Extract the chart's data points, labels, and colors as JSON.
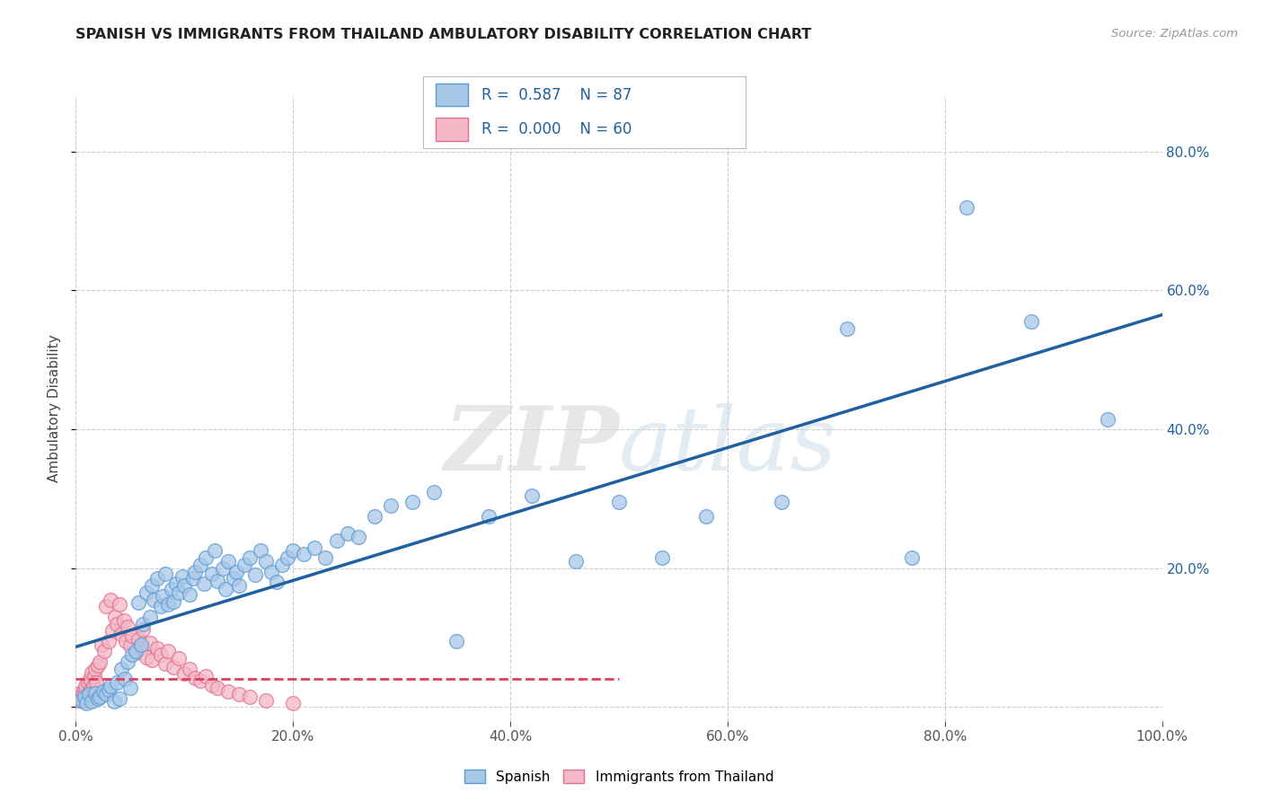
{
  "title": "SPANISH VS IMMIGRANTS FROM THAILAND AMBULATORY DISABILITY CORRELATION CHART",
  "source": "Source: ZipAtlas.com",
  "ylabel": "Ambulatory Disability",
  "xlim": [
    0.0,
    1.0
  ],
  "ylim": [
    -0.02,
    0.88
  ],
  "blue_color": "#a8c8e8",
  "blue_edge_color": "#5b9bd5",
  "pink_color": "#f4b8c8",
  "pink_edge_color": "#e07090",
  "blue_line_color": "#2060a0",
  "pink_line_color": "#e04060",
  "watermark": "ZIPatlas",
  "legend_r1": "R =  0.587",
  "legend_n1": "N = 87",
  "legend_r2": "R =  0.000",
  "legend_n2": "N = 60",
  "legend_text_color": "#2060a0",
  "blue_x": [
    0.005,
    0.008,
    0.01,
    0.012,
    0.015,
    0.018,
    0.02,
    0.022,
    0.025,
    0.028,
    0.03,
    0.032,
    0.035,
    0.038,
    0.04,
    0.042,
    0.045,
    0.048,
    0.05,
    0.052,
    0.055,
    0.058,
    0.06,
    0.062,
    0.065,
    0.068,
    0.07,
    0.072,
    0.075,
    0.078,
    0.08,
    0.082,
    0.085,
    0.088,
    0.09,
    0.092,
    0.095,
    0.098,
    0.1,
    0.105,
    0.108,
    0.11,
    0.115,
    0.118,
    0.12,
    0.125,
    0.128,
    0.13,
    0.135,
    0.138,
    0.14,
    0.145,
    0.148,
    0.15,
    0.155,
    0.16,
    0.165,
    0.17,
    0.175,
    0.18,
    0.185,
    0.19,
    0.195,
    0.2,
    0.21,
    0.22,
    0.23,
    0.24,
    0.25,
    0.26,
    0.275,
    0.29,
    0.31,
    0.33,
    0.35,
    0.38,
    0.42,
    0.46,
    0.5,
    0.54,
    0.58,
    0.65,
    0.71,
    0.77,
    0.82,
    0.88,
    0.95
  ],
  "blue_y": [
    0.01,
    0.015,
    0.005,
    0.018,
    0.008,
    0.02,
    0.012,
    0.015,
    0.022,
    0.018,
    0.025,
    0.03,
    0.008,
    0.035,
    0.012,
    0.055,
    0.04,
    0.065,
    0.028,
    0.075,
    0.08,
    0.15,
    0.09,
    0.12,
    0.165,
    0.13,
    0.175,
    0.155,
    0.185,
    0.145,
    0.16,
    0.192,
    0.148,
    0.17,
    0.152,
    0.178,
    0.165,
    0.188,
    0.175,
    0.162,
    0.185,
    0.195,
    0.205,
    0.178,
    0.215,
    0.192,
    0.225,
    0.182,
    0.2,
    0.17,
    0.21,
    0.185,
    0.195,
    0.175,
    0.205,
    0.215,
    0.19,
    0.225,
    0.21,
    0.195,
    0.18,
    0.205,
    0.215,
    0.225,
    0.22,
    0.23,
    0.215,
    0.24,
    0.25,
    0.245,
    0.275,
    0.29,
    0.295,
    0.31,
    0.095,
    0.275,
    0.305,
    0.21,
    0.295,
    0.215,
    0.275,
    0.295,
    0.545,
    0.215,
    0.72,
    0.555,
    0.415
  ],
  "pink_x": [
    0.002,
    0.003,
    0.004,
    0.005,
    0.006,
    0.007,
    0.008,
    0.009,
    0.01,
    0.011,
    0.012,
    0.013,
    0.014,
    0.015,
    0.016,
    0.017,
    0.018,
    0.019,
    0.02,
    0.022,
    0.024,
    0.026,
    0.028,
    0.03,
    0.032,
    0.034,
    0.036,
    0.038,
    0.04,
    0.042,
    0.044,
    0.046,
    0.048,
    0.05,
    0.052,
    0.055,
    0.058,
    0.06,
    0.062,
    0.065,
    0.068,
    0.07,
    0.075,
    0.078,
    0.082,
    0.085,
    0.09,
    0.095,
    0.1,
    0.105,
    0.11,
    0.115,
    0.12,
    0.125,
    0.13,
    0.14,
    0.15,
    0.16,
    0.175,
    0.2
  ],
  "pink_y": [
    0.01,
    0.015,
    0.02,
    0.012,
    0.018,
    0.008,
    0.025,
    0.03,
    0.015,
    0.035,
    0.02,
    0.04,
    0.025,
    0.05,
    0.03,
    0.045,
    0.055,
    0.035,
    0.06,
    0.065,
    0.09,
    0.08,
    0.145,
    0.095,
    0.155,
    0.11,
    0.13,
    0.12,
    0.148,
    0.105,
    0.125,
    0.095,
    0.115,
    0.088,
    0.102,
    0.078,
    0.098,
    0.085,
    0.112,
    0.072,
    0.092,
    0.068,
    0.085,
    0.075,
    0.062,
    0.08,
    0.058,
    0.07,
    0.048,
    0.055,
    0.042,
    0.038,
    0.045,
    0.032,
    0.028,
    0.022,
    0.018,
    0.015,
    0.01,
    0.005
  ]
}
